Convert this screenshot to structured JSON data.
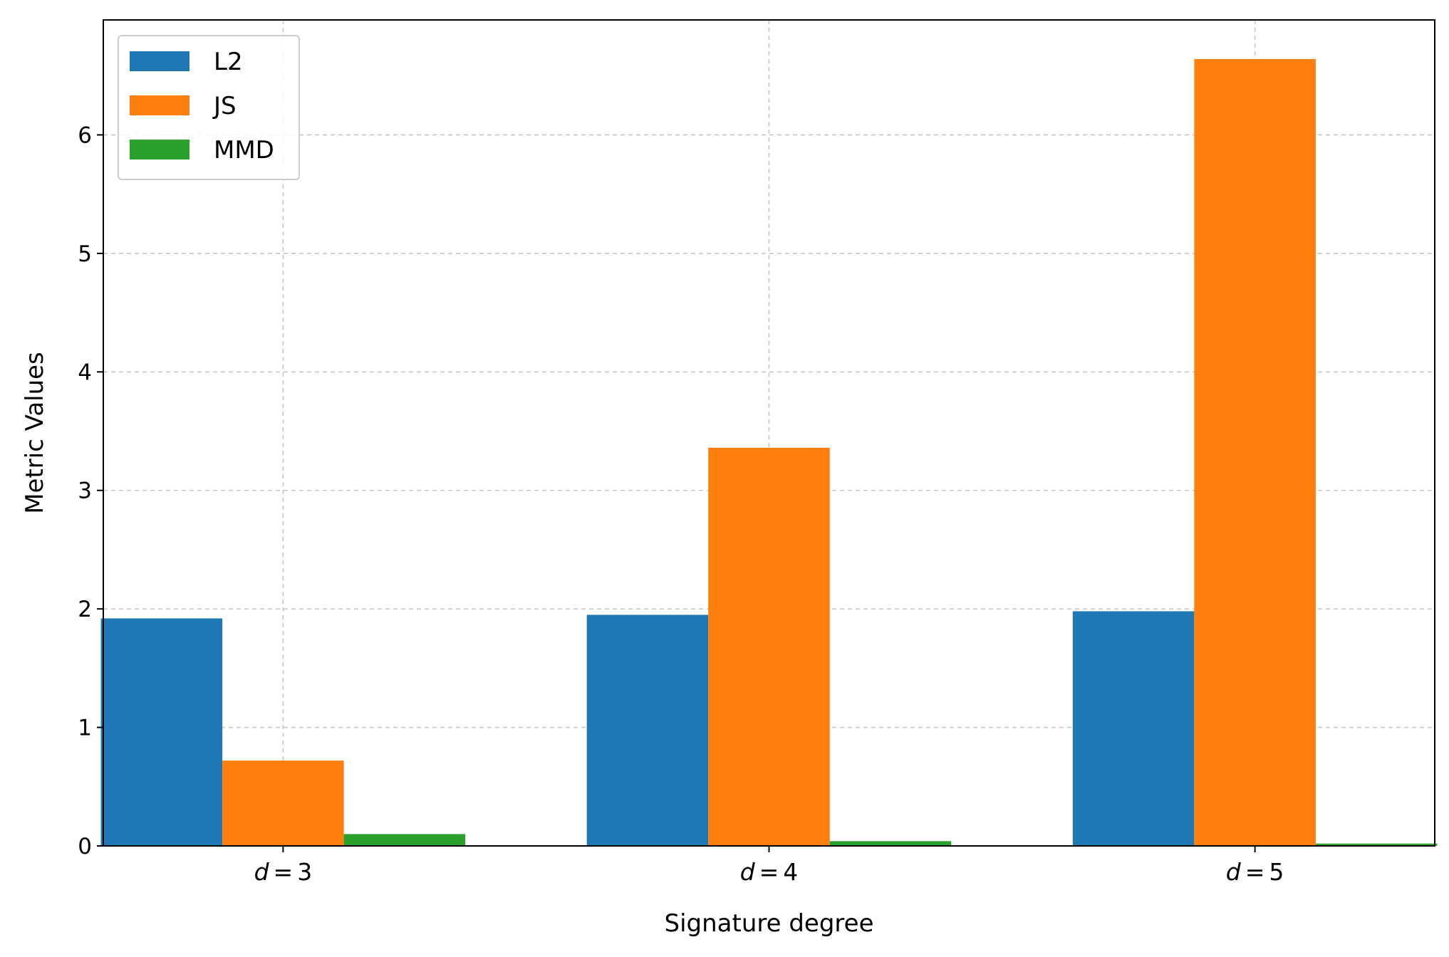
{
  "chart_data": {
    "type": "bar",
    "categories": [
      {
        "var": "d",
        "op": "=",
        "num": "3"
      },
      {
        "var": "d",
        "op": "=",
        "num": "4"
      },
      {
        "var": "d",
        "op": "=",
        "num": "5"
      }
    ],
    "series": [
      {
        "name": "L2",
        "color": "#1f77b4",
        "values": [
          1.92,
          1.95,
          1.98
        ]
      },
      {
        "name": "JS",
        "color": "#ff7f0e",
        "values": [
          0.72,
          3.36,
          6.64
        ]
      },
      {
        "name": "MMD",
        "color": "#2ca02c",
        "values": [
          0.1,
          0.04,
          0.02
        ]
      }
    ],
    "title": "",
    "xlabel": "Signature degree",
    "ylabel": "Metric Values",
    "ylim": [
      0,
      6.97
    ],
    "yticks": [
      0,
      1,
      2,
      3,
      4,
      5,
      6
    ],
    "grid": true,
    "legend_position": "top-left"
  }
}
